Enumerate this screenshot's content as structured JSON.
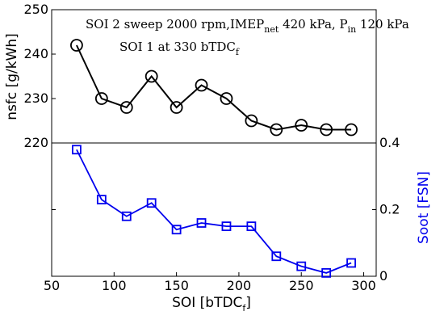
{
  "chart_data": [
    {
      "type": "line",
      "name_role": "top panel",
      "ylabel": "nsfc [g/kWh]",
      "ylim": [
        220,
        250
      ],
      "yticks": [
        "220",
        "230",
        "240",
        "250"
      ],
      "xlim": [
        50,
        310
      ],
      "annotation": {
        "line1_a": "SOI 2 sweep 2000 rpm,IMEP",
        "line1_sub1": "net",
        "line1_b": " 420 kPa, P",
        "line1_sub2": "in",
        "line1_c": "  120 kPa",
        "line2_a": "SOI 1 at 330 bTDC",
        "line2_sub": "f"
      },
      "series": [
        {
          "color": "#000000",
          "marker": "circle",
          "x": [
            70,
            90,
            110,
            130,
            150,
            170,
            190,
            210,
            230,
            250,
            270,
            290
          ],
          "y": [
            242,
            230,
            228,
            235,
            228,
            233,
            230,
            225,
            223,
            224,
            223,
            223
          ]
        }
      ]
    },
    {
      "type": "line",
      "name_role": "bottom panel",
      "ylabel": "Soot [FSN]",
      "ylabel_color": "#0000ee",
      "ylim": [
        0,
        0.4
      ],
      "yticks": [
        "0",
        "0.2",
        "0.4"
      ],
      "xlabel_a": "SOI [bTDC",
      "xlabel_sub": "f",
      "xlabel_b": "]",
      "xlim": [
        50,
        310
      ],
      "xticks": [
        "50",
        "100",
        "150",
        "200",
        "250",
        "300"
      ],
      "series": [
        {
          "color": "#0000ee",
          "marker": "square",
          "x": [
            70,
            90,
            110,
            130,
            150,
            170,
            190,
            210,
            230,
            250,
            270,
            290
          ],
          "y": [
            0.38,
            0.23,
            0.18,
            0.22,
            0.14,
            0.16,
            0.15,
            0.15,
            0.06,
            0.03,
            0.01,
            0.04
          ]
        }
      ]
    }
  ]
}
